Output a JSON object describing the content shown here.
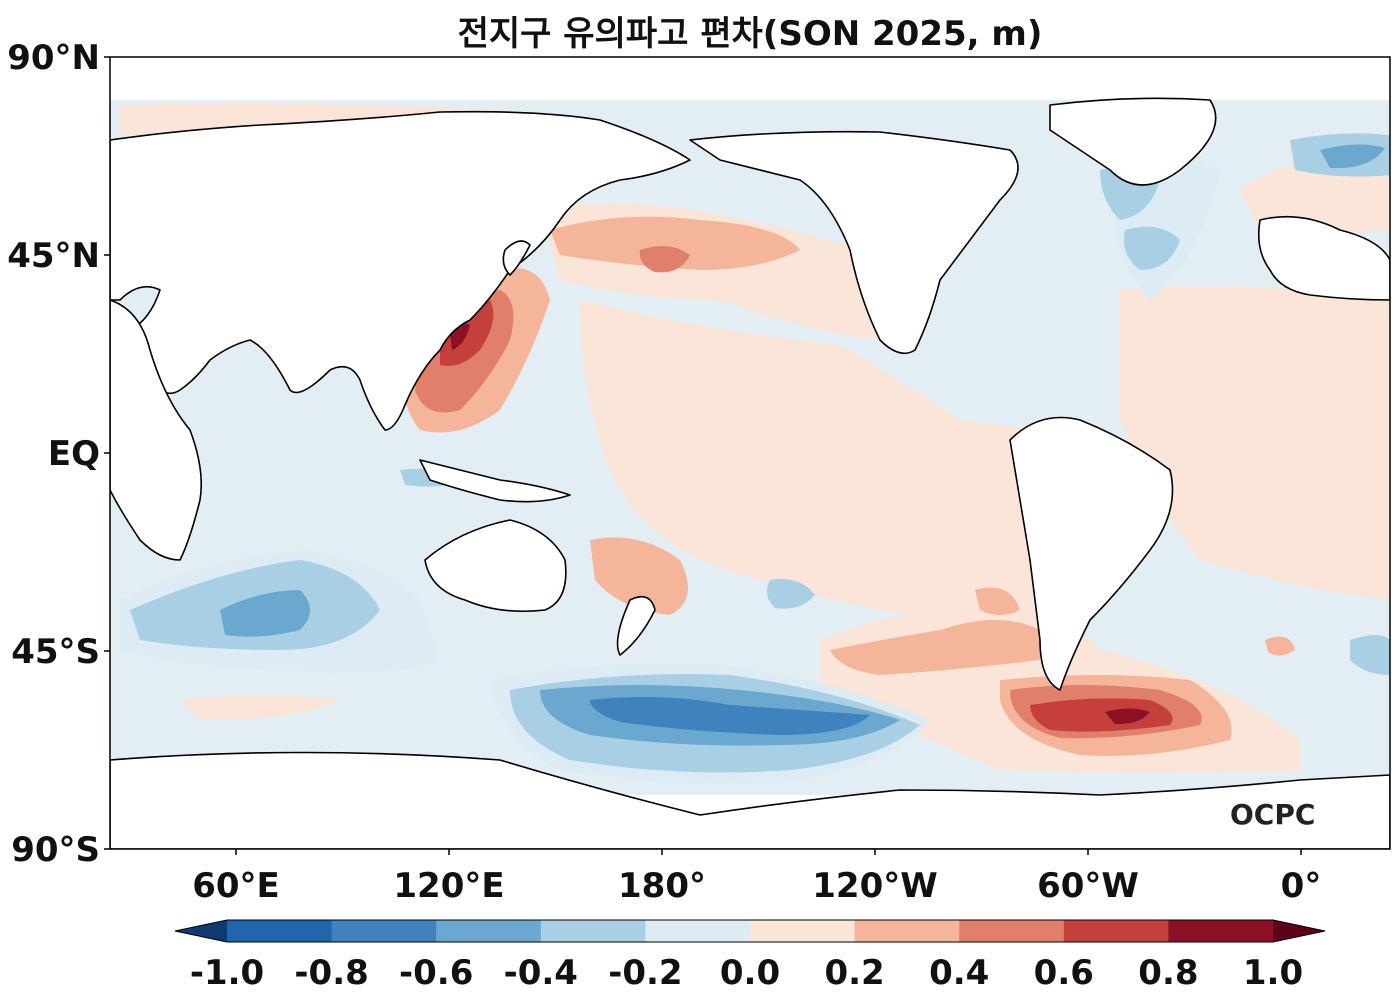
{
  "title": "전지구 유의파고 편차(SON 2025, m)",
  "lat_ticks": [
    "90°N",
    "45°N",
    "EQ",
    "45°S",
    "90°S"
  ],
  "lon_ticks": [
    "60°E",
    "120°E",
    "180°",
    "120°W",
    "60°W",
    "0°"
  ],
  "colorbar": {
    "labels": [
      "-1.0",
      "-0.8",
      "-0.6",
      "-0.4",
      "-0.2",
      "0.0",
      "0.2",
      "0.4",
      "0.6",
      "0.8",
      "1.0"
    ],
    "colors": [
      "#2166ac",
      "#3f82bd",
      "#6aa8d0",
      "#a9cfe5",
      "#dcebf4",
      "#fbe4d8",
      "#f4b59a",
      "#e0806a",
      "#c53f3d",
      "#8d1024"
    ],
    "under_color": "#0d3b72",
    "over_color": "#5f0019"
  },
  "logo_text": "OCPC",
  "colors": {
    "ocean_base": "#e3eef4",
    "land": "#ffffff",
    "coastline": "#000000"
  }
}
